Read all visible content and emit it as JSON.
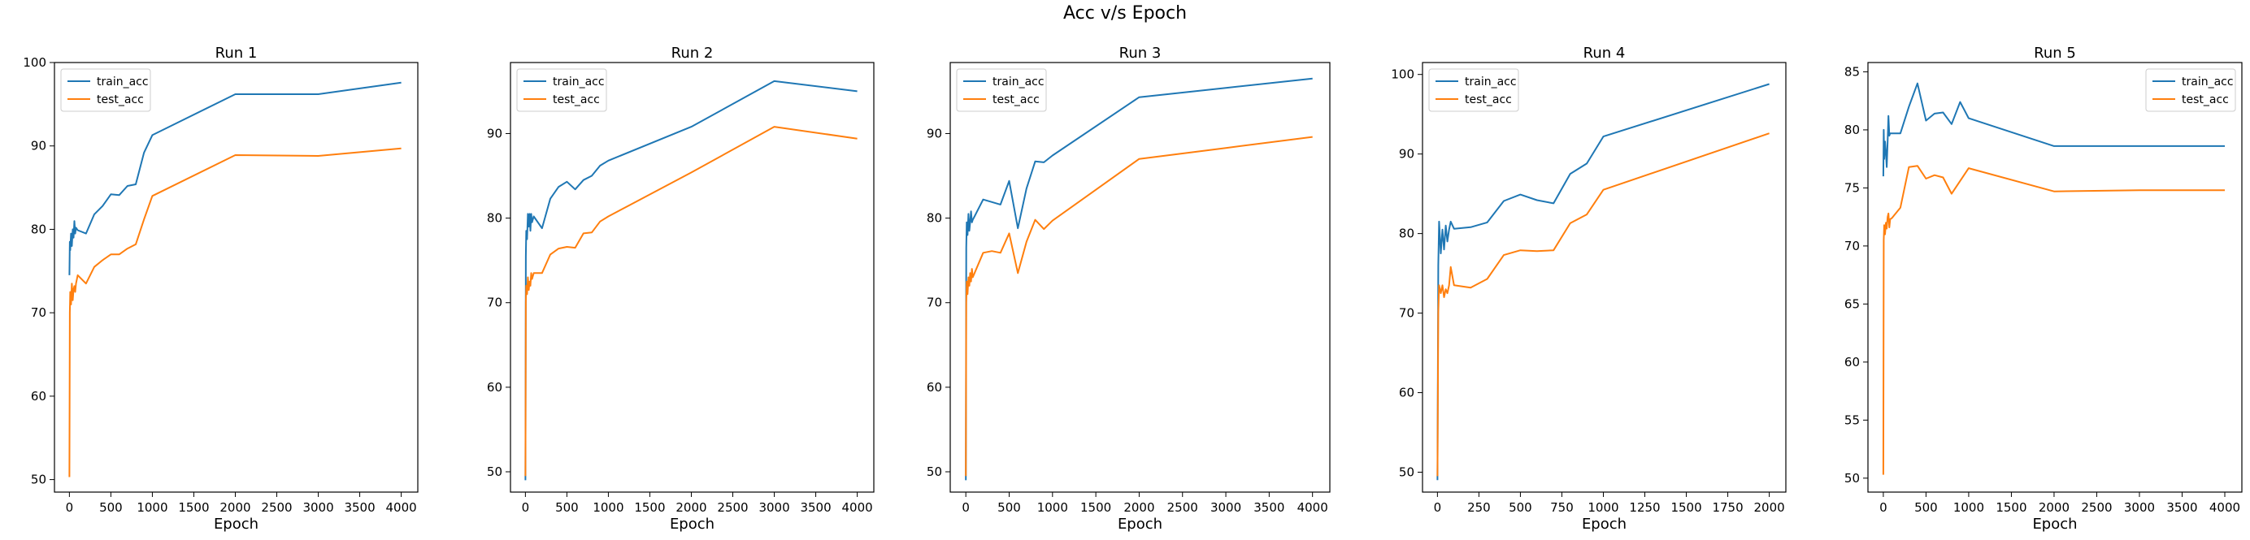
{
  "figure": {
    "title": "Acc v/s Epoch"
  },
  "colors": {
    "train_acc": "#1f77b4",
    "test_acc": "#ff7f0e",
    "axes": "#000000"
  },
  "chart_data": [
    {
      "type": "line",
      "title": "Run 1",
      "xlabel": "Epoch",
      "ylabel": "",
      "xlim": [
        -180,
        4200
      ],
      "ylim": [
        48.5,
        100
      ],
      "xticks": [
        0,
        500,
        1000,
        1500,
        2000,
        2500,
        3000,
        3500,
        4000
      ],
      "yticks": [
        50,
        60,
        70,
        80,
        90,
        100
      ],
      "legend": "top-left",
      "grid": false,
      "series": [
        {
          "name": "train_acc",
          "color": "#1f77b4",
          "x": [
            0,
            5,
            10,
            20,
            30,
            40,
            50,
            60,
            70,
            80,
            100,
            200,
            300,
            400,
            500,
            600,
            700,
            800,
            900,
            1000,
            2000,
            3000,
            4000
          ],
          "y": [
            74.5,
            78.5,
            77.5,
            79.5,
            78.0,
            80.0,
            79.0,
            81.0,
            79.5,
            80.2,
            79.9,
            79.5,
            81.8,
            82.8,
            84.2,
            84.1,
            85.2,
            85.4,
            89.2,
            91.3,
            96.2,
            96.2,
            97.6
          ]
        },
        {
          "name": "test_acc",
          "color": "#ff7f0e",
          "x": [
            0,
            5,
            10,
            20,
            30,
            40,
            50,
            60,
            70,
            80,
            100,
            200,
            300,
            400,
            500,
            600,
            700,
            800,
            900,
            1000,
            2000,
            3000,
            4000
          ],
          "y": [
            50.3,
            70.0,
            72.5,
            71.0,
            73.5,
            71.5,
            72.8,
            73.2,
            72.5,
            73.5,
            74.5,
            73.5,
            75.5,
            76.3,
            77.0,
            77.0,
            77.7,
            78.2,
            81.2,
            84.0,
            88.9,
            88.8,
            89.7
          ]
        }
      ]
    },
    {
      "type": "line",
      "title": "Run 2",
      "xlabel": "Epoch",
      "ylabel": "",
      "xlim": [
        -180,
        4200
      ],
      "ylim": [
        47.6,
        98.4
      ],
      "xticks": [
        0,
        500,
        1000,
        1500,
        2000,
        2500,
        3000,
        3500,
        4000
      ],
      "yticks": [
        50,
        60,
        70,
        80,
        90
      ],
      "legend": "top-left",
      "grid": false,
      "series": [
        {
          "name": "train_acc",
          "color": "#1f77b4",
          "x": [
            0,
            5,
            10,
            20,
            30,
            40,
            50,
            60,
            70,
            80,
            100,
            200,
            300,
            400,
            500,
            600,
            700,
            800,
            900,
            1000,
            2000,
            3000,
            4000
          ],
          "y": [
            49.0,
            75.5,
            78.5,
            77.5,
            80.5,
            79.0,
            80.5,
            78.5,
            80.5,
            79.5,
            80.2,
            78.8,
            82.3,
            83.7,
            84.3,
            83.4,
            84.5,
            85.0,
            86.2,
            86.8,
            90.8,
            96.2,
            95.0
          ]
        },
        {
          "name": "test_acc",
          "color": "#ff7f0e",
          "x": [
            0,
            5,
            10,
            20,
            30,
            40,
            50,
            60,
            70,
            80,
            100,
            200,
            300,
            400,
            500,
            600,
            700,
            800,
            900,
            1000,
            2000,
            3000,
            4000
          ],
          "y": [
            49.5,
            70.0,
            72.0,
            71.0,
            73.0,
            71.5,
            72.5,
            72.0,
            73.5,
            72.8,
            73.5,
            73.5,
            75.7,
            76.4,
            76.6,
            76.5,
            78.2,
            78.3,
            79.6,
            80.2,
            85.4,
            90.8,
            89.4
          ]
        }
      ]
    },
    {
      "type": "line",
      "title": "Run 3",
      "xlabel": "Epoch",
      "ylabel": "",
      "xlim": [
        -180,
        4200
      ],
      "ylim": [
        47.6,
        98.4
      ],
      "xticks": [
        0,
        500,
        1000,
        1500,
        2000,
        2500,
        3000,
        3500,
        4000
      ],
      "yticks": [
        50,
        60,
        70,
        80,
        90
      ],
      "legend": "top-left",
      "grid": false,
      "series": [
        {
          "name": "train_acc",
          "color": "#1f77b4",
          "x": [
            0,
            5,
            10,
            20,
            30,
            40,
            50,
            60,
            70,
            80,
            100,
            200,
            300,
            400,
            500,
            600,
            700,
            800,
            900,
            1000,
            2000,
            3000,
            4000
          ],
          "y": [
            49.0,
            76.5,
            79.5,
            78.0,
            80.5,
            78.5,
            79.5,
            80.8,
            79.5,
            79.8,
            80.2,
            82.2,
            81.9,
            81.6,
            84.4,
            78.8,
            83.5,
            86.7,
            86.6,
            87.4,
            94.3,
            95.4,
            96.5
          ]
        },
        {
          "name": "test_acc",
          "color": "#ff7f0e",
          "x": [
            0,
            5,
            10,
            20,
            30,
            40,
            50,
            60,
            70,
            80,
            100,
            200,
            300,
            400,
            500,
            600,
            700,
            800,
            900,
            1000,
            2000,
            3000,
            4000
          ],
          "y": [
            49.5,
            70.0,
            72.5,
            71.0,
            73.0,
            72.0,
            73.5,
            72.5,
            74.0,
            73.0,
            73.5,
            75.9,
            76.1,
            75.9,
            78.2,
            73.5,
            77.2,
            79.8,
            78.7,
            79.7,
            87.0,
            88.3,
            89.6
          ]
        }
      ]
    },
    {
      "type": "line",
      "title": "Run 4",
      "xlabel": "Epoch",
      "ylabel": "",
      "xlim": [
        -90,
        2100
      ],
      "ylim": [
        47.5,
        101.5
      ],
      "xticks": [
        0,
        250,
        500,
        750,
        1000,
        1250,
        1500,
        1750,
        2000
      ],
      "yticks": [
        50,
        60,
        70,
        80,
        90,
        100
      ],
      "legend": "top-left",
      "grid": false,
      "series": [
        {
          "name": "train_acc",
          "color": "#1f77b4",
          "x": [
            0,
            5,
            10,
            20,
            30,
            40,
            50,
            60,
            70,
            80,
            100,
            200,
            300,
            400,
            500,
            600,
            700,
            800,
            900,
            1000,
            2000
          ],
          "y": [
            49.0,
            76.0,
            81.5,
            77.5,
            80.5,
            78.0,
            81.0,
            79.0,
            80.5,
            81.5,
            80.6,
            80.8,
            81.4,
            84.1,
            84.9,
            84.2,
            83.8,
            87.5,
            88.8,
            92.2,
            98.8
          ]
        },
        {
          "name": "test_acc",
          "color": "#ff7f0e",
          "x": [
            0,
            5,
            10,
            20,
            30,
            40,
            50,
            60,
            70,
            80,
            100,
            200,
            300,
            400,
            500,
            600,
            700,
            800,
            900,
            1000,
            2000
          ],
          "y": [
            49.5,
            70.0,
            73.5,
            72.5,
            73.5,
            72.0,
            73.0,
            72.5,
            73.5,
            75.8,
            73.5,
            73.2,
            74.3,
            77.3,
            77.9,
            77.8,
            77.9,
            81.3,
            82.4,
            85.5,
            92.6
          ]
        }
      ]
    },
    {
      "type": "line",
      "title": "Run 5",
      "xlabel": "Epoch",
      "ylabel": "",
      "xlim": [
        -180,
        4200
      ],
      "ylim": [
        48.8,
        85.8
      ],
      "xticks": [
        0,
        500,
        1000,
        1500,
        2000,
        2500,
        3000,
        3500,
        4000
      ],
      "yticks": [
        50,
        55,
        60,
        65,
        70,
        75,
        80,
        85
      ],
      "legend": "top-right",
      "grid": false,
      "series": [
        {
          "name": "train_acc",
          "color": "#1f77b4",
          "x": [
            0,
            5,
            10,
            20,
            30,
            40,
            50,
            60,
            70,
            80,
            100,
            200,
            300,
            400,
            500,
            600,
            700,
            800,
            900,
            1000,
            2000,
            3000,
            4000
          ],
          "y": [
            76.0,
            80.0,
            77.5,
            79.0,
            78.0,
            76.8,
            79.0,
            81.2,
            79.5,
            79.7,
            79.7,
            79.7,
            82.0,
            84.0,
            80.8,
            81.4,
            81.5,
            80.5,
            82.4,
            81.0,
            78.6,
            78.6,
            78.6
          ]
        },
        {
          "name": "test_acc",
          "color": "#ff7f0e",
          "x": [
            0,
            5,
            10,
            20,
            30,
            40,
            50,
            60,
            70,
            80,
            100,
            200,
            300,
            400,
            500,
            600,
            700,
            800,
            900,
            1000,
            2000,
            3000,
            4000
          ],
          "y": [
            50.3,
            70.5,
            71.8,
            71.0,
            72.0,
            71.5,
            72.5,
            72.8,
            71.6,
            72.3,
            72.4,
            73.3,
            76.8,
            76.9,
            75.8,
            76.1,
            75.9,
            74.5,
            75.6,
            76.7,
            74.7,
            74.8,
            74.8
          ]
        }
      ]
    }
  ]
}
